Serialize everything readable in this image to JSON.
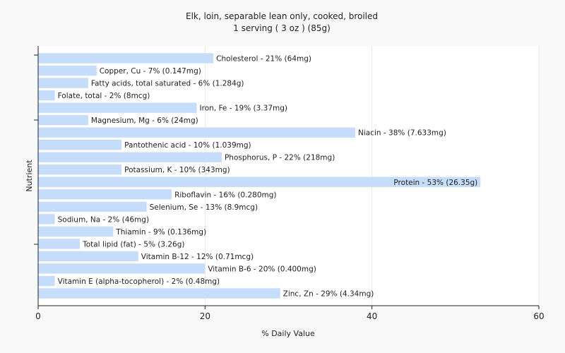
{
  "chart_data": {
    "type": "bar",
    "orientation": "horizontal",
    "title": "Elk, loin, separable lean only, cooked, broiled",
    "subtitle": "1 serving ( 3 oz ) (85g)",
    "xlabel": "% Daily Value",
    "ylabel": "Nutrient",
    "xlim": [
      0,
      60
    ],
    "xticks": [
      0,
      20,
      40,
      60
    ],
    "grid": true,
    "bar_color": "#c6dcfb",
    "categories": [
      "Cholesterol",
      "Copper, Cu",
      "Fatty acids, total saturated",
      "Folate, total",
      "Iron, Fe",
      "Magnesium, Mg",
      "Niacin",
      "Pantothenic acid",
      "Phosphorus, P",
      "Potassium, K",
      "Protein",
      "Riboflavin",
      "Selenium, Se",
      "Sodium, Na",
      "Thiamin",
      "Total lipid (fat)",
      "Vitamin B-12",
      "Vitamin B-6",
      "Vitamin E (alpha-tocopherol)",
      "Zinc, Zn"
    ],
    "values": [
      21,
      7,
      6,
      2,
      19,
      6,
      38,
      10,
      22,
      10,
      53,
      16,
      13,
      2,
      9,
      5,
      12,
      20,
      2,
      29
    ],
    "labels": [
      "Cholesterol - 21% (64mg)",
      "Copper, Cu - 7% (0.147mg)",
      "Fatty acids, total saturated - 6% (1.284g)",
      "Folate, total - 2% (8mcg)",
      "Iron, Fe - 19% (3.37mg)",
      "Magnesium, Mg - 6% (24mg)",
      "Niacin - 38% (7.633mg)",
      "Pantothenic acid - 10% (1.039mg)",
      "Phosphorus, P - 22% (218mg)",
      "Potassium, K - 10% (343mg)",
      "Protein - 53% (26.35g)",
      "Riboflavin - 16% (0.280mg)",
      "Selenium, Se - 13% (8.9mcg)",
      "Sodium, Na - 2% (46mg)",
      "Thiamin - 9% (0.136mg)",
      "Total lipid (fat) - 5% (3.26g)",
      "Vitamin B-12 - 12% (0.71mcg)",
      "Vitamin B-6 - 20% (0.400mg)",
      "Vitamin E (alpha-tocopherol) - 2% (0.48mg)",
      "Zinc, Zn - 29% (4.34mg)"
    ]
  }
}
